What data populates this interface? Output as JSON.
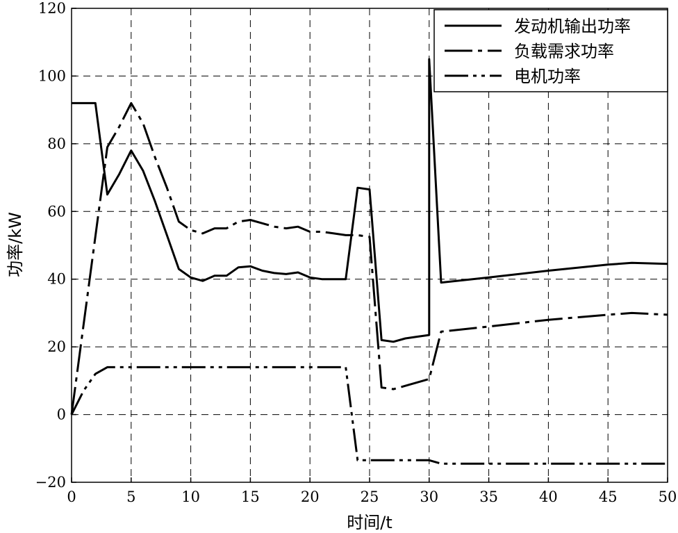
{
  "chart_data": {
    "type": "line",
    "xlabel": "时间/t",
    "ylabel": "功率/kW",
    "xlim": [
      0,
      50
    ],
    "ylim": [
      -20,
      120
    ],
    "xticks": [
      0,
      5,
      10,
      15,
      20,
      25,
      30,
      35,
      40,
      45,
      50
    ],
    "yticks": [
      -20,
      0,
      20,
      40,
      60,
      80,
      100,
      120
    ],
    "ytick_labels": [
      "−20",
      "0",
      "20",
      "40",
      "60",
      "80",
      "100",
      "120"
    ],
    "grid": true,
    "legend_position": "top-right",
    "series": [
      {
        "name": "发动机输出功率",
        "style": "solid",
        "x": [
          0,
          2,
          3,
          4,
          5,
          6,
          7,
          8,
          9,
          10,
          11,
          12,
          13,
          14,
          15,
          16,
          17,
          18,
          19,
          20,
          21,
          22,
          23,
          24,
          25,
          26,
          27,
          28,
          29,
          30,
          30,
          31,
          35,
          40,
          45,
          47,
          50
        ],
        "y": [
          92,
          92,
          65,
          71,
          78,
          72,
          63,
          53,
          43,
          40.5,
          39.5,
          41,
          41,
          43.5,
          43.8,
          42.5,
          41.8,
          41.5,
          42,
          40.5,
          40,
          40,
          40,
          67,
          66.5,
          22,
          21.5,
          22.5,
          23,
          23.5,
          105,
          39,
          40.5,
          42.5,
          44.3,
          44.8,
          44.5
        ]
      },
      {
        "name": "负载需求功率",
        "style": "dash-dot",
        "x": [
          0,
          3,
          4,
          5,
          6,
          7,
          8,
          9,
          10,
          11,
          12,
          13,
          14,
          15,
          16,
          17,
          18,
          19,
          20,
          21,
          22,
          23,
          24,
          25,
          26,
          27,
          28,
          29,
          30,
          31,
          35,
          40,
          45,
          47,
          50
        ],
        "y": [
          0,
          79,
          85,
          92,
          86,
          76,
          67,
          57,
          54.5,
          53.5,
          55,
          55,
          57,
          57.5,
          56.5,
          55.5,
          55,
          55.5,
          54,
          54,
          53.5,
          53,
          53,
          52.5,
          8,
          7.5,
          8.5,
          9.5,
          10.5,
          24.5,
          26,
          28,
          29.5,
          30,
          29.5
        ]
      },
      {
        "name": "电机功率",
        "style": "dash-dot-dot",
        "x": [
          0,
          1,
          2,
          3,
          10,
          15,
          20,
          23,
          24,
          30,
          31,
          35,
          40,
          45,
          50
        ],
        "y": [
          0,
          7,
          12,
          14,
          14,
          14,
          14,
          14,
          -13.5,
          -13.5,
          -14.5,
          -14.5,
          -14.5,
          -14.5,
          -14.5
        ]
      }
    ]
  }
}
